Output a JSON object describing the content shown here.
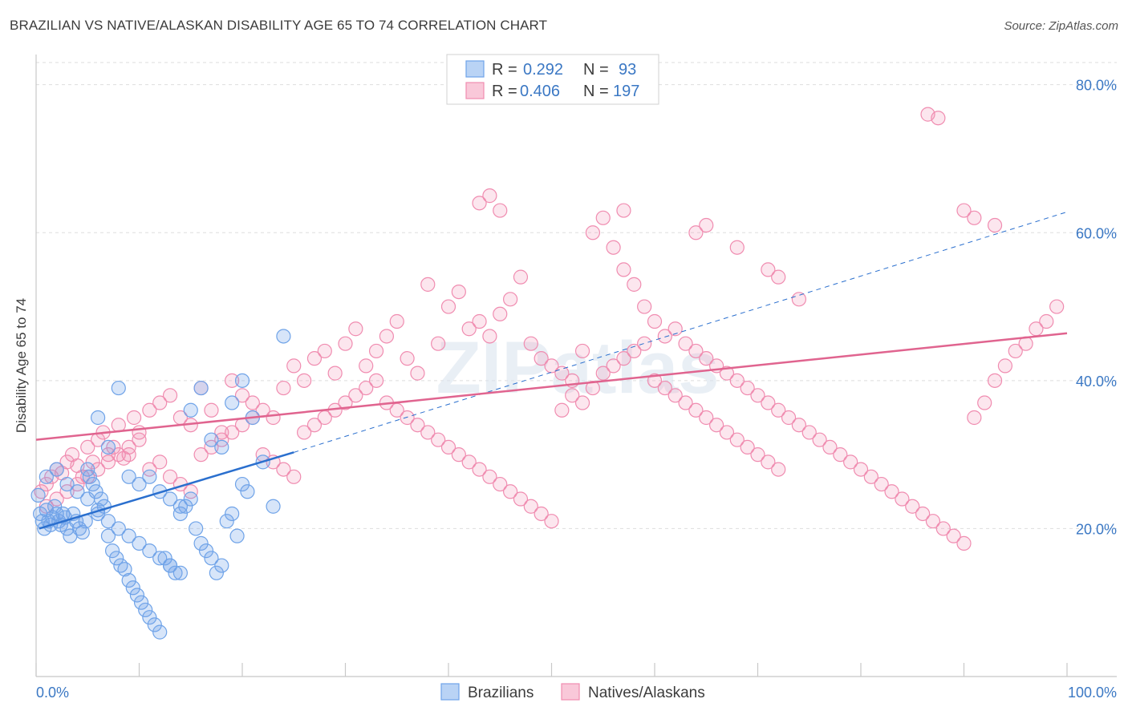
{
  "title": "BRAZILIAN VS NATIVE/ALASKAN DISABILITY AGE 65 TO 74 CORRELATION CHART",
  "source": "Source: ZipAtlas.com",
  "watermark": "ZIPatlas",
  "colors": {
    "blue": "#6fa3e8",
    "blue_line": "#2a6fce",
    "pink": "#f08cb0",
    "pink_line": "#e0648f",
    "label_blue": "#3b78c4"
  },
  "legend": {
    "rows": [
      {
        "r_label": "R =",
        "r_value": "0.292",
        "n_label": "N =",
        "n_value": "93"
      },
      {
        "r_label": "R =",
        "r_value": "0.406",
        "n_label": "N =",
        "n_value": "197"
      }
    ]
  },
  "chart_data": {
    "type": "scatter",
    "title": "BRAZILIAN VS NATIVE/ALASKAN DISABILITY AGE 65 TO 74 CORRELATION CHART",
    "xlabel": "",
    "ylabel": "Disability Age 65 to 74",
    "xlim": [
      0,
      100
    ],
    "ylim": [
      0,
      83
    ],
    "x_tick_labels": [
      "0.0%",
      "100.0%"
    ],
    "y_ticks": [
      20,
      40,
      60,
      80
    ],
    "y_tick_labels": [
      "20.0%",
      "40.0%",
      "60.0%",
      "80.0%"
    ],
    "series": [
      {
        "name": "Brazilians",
        "r": 0.292,
        "n": 93,
        "trend": {
          "x0": 0.3,
          "y0": 20.0,
          "x1": 25,
          "y1": 30.3,
          "dashed_to_x": 100,
          "dashed_to_y": 62.8
        },
        "points": [
          [
            0.2,
            24.5
          ],
          [
            0.4,
            22
          ],
          [
            0.6,
            21
          ],
          [
            0.8,
            20
          ],
          [
            1,
            22.5
          ],
          [
            1.2,
            21
          ],
          [
            1.4,
            20.5
          ],
          [
            1.6,
            21.5
          ],
          [
            1.8,
            23
          ],
          [
            2,
            22
          ],
          [
            2.2,
            21
          ],
          [
            2.4,
            20.5
          ],
          [
            2.6,
            22
          ],
          [
            2.8,
            21.5
          ],
          [
            3,
            20
          ],
          [
            3.3,
            19
          ],
          [
            3.6,
            22
          ],
          [
            3.9,
            21
          ],
          [
            4.2,
            20
          ],
          [
            4.5,
            19.5
          ],
          [
            4.8,
            21
          ],
          [
            5,
            28
          ],
          [
            5.2,
            27
          ],
          [
            5.5,
            26
          ],
          [
            5.8,
            25
          ],
          [
            6,
            22
          ],
          [
            6.3,
            24
          ],
          [
            6.6,
            23
          ],
          [
            7,
            19
          ],
          [
            7.4,
            17
          ],
          [
            7.8,
            16
          ],
          [
            8.2,
            15
          ],
          [
            8.6,
            14.5
          ],
          [
            9,
            13
          ],
          [
            9.4,
            12
          ],
          [
            9.8,
            11
          ],
          [
            10.2,
            10
          ],
          [
            10.6,
            9
          ],
          [
            11,
            8
          ],
          [
            11.5,
            7
          ],
          [
            12,
            6
          ],
          [
            12.5,
            16
          ],
          [
            13,
            15
          ],
          [
            13.5,
            14
          ],
          [
            14,
            22
          ],
          [
            14.5,
            23
          ],
          [
            15,
            24
          ],
          [
            15.5,
            20
          ],
          [
            16,
            18
          ],
          [
            16.5,
            17
          ],
          [
            17,
            16
          ],
          [
            17.5,
            14
          ],
          [
            18,
            15
          ],
          [
            18.5,
            21
          ],
          [
            19,
            22
          ],
          [
            19.5,
            19
          ],
          [
            20,
            26
          ],
          [
            20.5,
            25
          ],
          [
            6,
            35
          ],
          [
            7,
            31
          ],
          [
            8,
            39
          ],
          [
            9,
            27
          ],
          [
            10,
            26
          ],
          [
            11,
            27
          ],
          [
            12,
            25
          ],
          [
            13,
            24
          ],
          [
            14,
            23
          ],
          [
            15,
            36
          ],
          [
            16,
            39
          ],
          [
            17,
            32
          ],
          [
            18,
            31
          ],
          [
            19,
            37
          ],
          [
            20,
            40
          ],
          [
            21,
            35
          ],
          [
            22,
            29
          ],
          [
            23,
            23
          ],
          [
            24,
            46
          ],
          [
            1,
            27
          ],
          [
            2,
            28
          ],
          [
            3,
            26
          ],
          [
            4,
            25
          ],
          [
            5,
            24
          ],
          [
            6,
            22.5
          ],
          [
            7,
            21
          ],
          [
            8,
            20
          ],
          [
            9,
            19
          ],
          [
            10,
            18
          ],
          [
            11,
            17
          ],
          [
            12,
            16
          ],
          [
            13,
            15
          ],
          [
            14,
            14
          ]
        ]
      },
      {
        "name": "Natives/Alaskans",
        "r": 0.406,
        "n": 197,
        "trend": {
          "x0": 0,
          "y0": 32.0,
          "x1": 100,
          "y1": 46.4
        },
        "points": [
          [
            0.5,
            25
          ],
          [
            1,
            26
          ],
          [
            1.5,
            27
          ],
          [
            2,
            28
          ],
          [
            2.5,
            27.5
          ],
          [
            3,
            29
          ],
          [
            3.5,
            30
          ],
          [
            4,
            28.5
          ],
          [
            4.5,
            27
          ],
          [
            5,
            31
          ],
          [
            5.5,
            29
          ],
          [
            6,
            32
          ],
          [
            6.5,
            33
          ],
          [
            7,
            30
          ],
          [
            7.5,
            31
          ],
          [
            8,
            34
          ],
          [
            8.5,
            29.5
          ],
          [
            9,
            30
          ],
          [
            9.5,
            35
          ],
          [
            10,
            33
          ],
          [
            11,
            36
          ],
          [
            12,
            37
          ],
          [
            13,
            38
          ],
          [
            14,
            35
          ],
          [
            15,
            34
          ],
          [
            16,
            39
          ],
          [
            17,
            36
          ],
          [
            18,
            33
          ],
          [
            19,
            40
          ],
          [
            20,
            38
          ],
          [
            21,
            37
          ],
          [
            22,
            36
          ],
          [
            23,
            35
          ],
          [
            24,
            39
          ],
          [
            25,
            42
          ],
          [
            26,
            40
          ],
          [
            27,
            43
          ],
          [
            28,
            44
          ],
          [
            29,
            41
          ],
          [
            30,
            45
          ],
          [
            31,
            47
          ],
          [
            32,
            42
          ],
          [
            33,
            44
          ],
          [
            34,
            46
          ],
          [
            35,
            48
          ],
          [
            36,
            43
          ],
          [
            37,
            41
          ],
          [
            38,
            53
          ],
          [
            39,
            45
          ],
          [
            40,
            50
          ],
          [
            41,
            52
          ],
          [
            42,
            47
          ],
          [
            43,
            48
          ],
          [
            44,
            46
          ],
          [
            45,
            49
          ],
          [
            46,
            51
          ],
          [
            47,
            54
          ],
          [
            48,
            45
          ],
          [
            49,
            43
          ],
          [
            50,
            42
          ],
          [
            51,
            41
          ],
          [
            52,
            40
          ],
          [
            53,
            44
          ],
          [
            54,
            60
          ],
          [
            55,
            62
          ],
          [
            56,
            58
          ],
          [
            57,
            55
          ],
          [
            58,
            53
          ],
          [
            59,
            50
          ],
          [
            60,
            48
          ],
          [
            61,
            46
          ],
          [
            62,
            47
          ],
          [
            63,
            45
          ],
          [
            64,
            44
          ],
          [
            65,
            43
          ],
          [
            66,
            42
          ],
          [
            67,
            41
          ],
          [
            68,
            40
          ],
          [
            69,
            39
          ],
          [
            70,
            38
          ],
          [
            71,
            37
          ],
          [
            72,
            36
          ],
          [
            73,
            35
          ],
          [
            74,
            34
          ],
          [
            75,
            33
          ],
          [
            76,
            32
          ],
          [
            77,
            31
          ],
          [
            78,
            30
          ],
          [
            79,
            29
          ],
          [
            80,
            28
          ],
          [
            81,
            27
          ],
          [
            82,
            26
          ],
          [
            83,
            25
          ],
          [
            84,
            24
          ],
          [
            85,
            23
          ],
          [
            86,
            22
          ],
          [
            87,
            21
          ],
          [
            88,
            20
          ],
          [
            89,
            19
          ],
          [
            90,
            18
          ],
          [
            91,
            35
          ],
          [
            92,
            37
          ],
          [
            93,
            40
          ],
          [
            94,
            42
          ],
          [
            95,
            44
          ],
          [
            96,
            45
          ],
          [
            97,
            47
          ],
          [
            98,
            48
          ],
          [
            99,
            50
          ],
          [
            86.5,
            76
          ],
          [
            87.5,
            75.5
          ],
          [
            43,
            64
          ],
          [
            44,
            65
          ],
          [
            45,
            63
          ],
          [
            57,
            63
          ],
          [
            64,
            60
          ],
          [
            65,
            61
          ],
          [
            68,
            58
          ],
          [
            71,
            55
          ],
          [
            72,
            54
          ],
          [
            74,
            51
          ],
          [
            90,
            63
          ],
          [
            91,
            62
          ],
          [
            93,
            61
          ],
          [
            1,
            23
          ],
          [
            2,
            24
          ],
          [
            3,
            25
          ],
          [
            4,
            26
          ],
          [
            5,
            27
          ],
          [
            6,
            28
          ],
          [
            7,
            29
          ],
          [
            8,
            30
          ],
          [
            9,
            31
          ],
          [
            10,
            32
          ],
          [
            11,
            28
          ],
          [
            12,
            29
          ],
          [
            13,
            27
          ],
          [
            14,
            26
          ],
          [
            15,
            25
          ],
          [
            16,
            30
          ],
          [
            17,
            31
          ],
          [
            18,
            32
          ],
          [
            19,
            33
          ],
          [
            20,
            34
          ],
          [
            21,
            35
          ],
          [
            22,
            30
          ],
          [
            23,
            29
          ],
          [
            24,
            28
          ],
          [
            25,
            27
          ],
          [
            26,
            33
          ],
          [
            27,
            34
          ],
          [
            28,
            35
          ],
          [
            29,
            36
          ],
          [
            30,
            37
          ],
          [
            31,
            38
          ],
          [
            32,
            39
          ],
          [
            33,
            40
          ],
          [
            34,
            37
          ],
          [
            35,
            36
          ],
          [
            36,
            35
          ],
          [
            37,
            34
          ],
          [
            38,
            33
          ],
          [
            39,
            32
          ],
          [
            40,
            31
          ],
          [
            41,
            30
          ],
          [
            42,
            29
          ],
          [
            43,
            28
          ],
          [
            44,
            27
          ],
          [
            45,
            26
          ],
          [
            46,
            25
          ],
          [
            47,
            24
          ],
          [
            48,
            23
          ],
          [
            49,
            22
          ],
          [
            50,
            21
          ],
          [
            51,
            36
          ],
          [
            52,
            38
          ],
          [
            53,
            37
          ],
          [
            54,
            39
          ],
          [
            55,
            41
          ],
          [
            56,
            42
          ],
          [
            57,
            43
          ],
          [
            58,
            44
          ],
          [
            59,
            45
          ],
          [
            60,
            40
          ],
          [
            61,
            39
          ],
          [
            62,
            38
          ],
          [
            63,
            37
          ],
          [
            64,
            36
          ],
          [
            65,
            35
          ],
          [
            66,
            34
          ],
          [
            67,
            33
          ],
          [
            68,
            32
          ],
          [
            69,
            31
          ],
          [
            70,
            30
          ],
          [
            71,
            29
          ],
          [
            72,
            28
          ]
        ]
      }
    ]
  },
  "bottom_legend": [
    "Brazilians",
    "Natives/Alaskans"
  ]
}
